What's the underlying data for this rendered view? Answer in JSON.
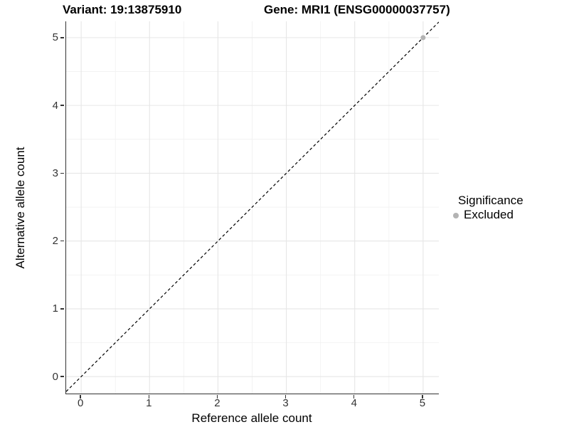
{
  "header": {
    "variant_title": "Variant: 19:13875910",
    "gene_title": "Gene: MRI1 (ENSG00000037757)"
  },
  "axes": {
    "x": {
      "label": "Reference allele count",
      "tick_labels": [
        "0",
        "1",
        "2",
        "3",
        "4",
        "5"
      ]
    },
    "y": {
      "label": "Alternative allele count",
      "tick_labels": [
        "0",
        "1",
        "2",
        "3",
        "4",
        "5"
      ]
    }
  },
  "legend": {
    "title": "Significance",
    "items": [
      {
        "label": "Excluded",
        "color": "#b3b3b3",
        "marker": "circle"
      }
    ]
  },
  "chart_data": {
    "type": "scatter",
    "title": "Variant: 19:13875910   Gene: MRI1 (ENSG00000037757)",
    "xlabel": "Reference allele count",
    "ylabel": "Alternative allele count",
    "xlim": [
      -0.22,
      5.23
    ],
    "ylim": [
      -0.25,
      5.24
    ],
    "xticks": [
      0,
      1,
      2,
      3,
      4,
      5
    ],
    "yticks": [
      0,
      1,
      2,
      3,
      4,
      5
    ],
    "grid": "major+minor",
    "legend_position": "right",
    "series": [
      {
        "name": "Excluded",
        "significance": "Excluded",
        "color": "#b3b3b3",
        "points": [
          {
            "x": 5,
            "y": 5
          }
        ]
      }
    ],
    "reference_line": {
      "kind": "abline",
      "slope": 1,
      "intercept": 0,
      "style": "dashed",
      "color": "#000000"
    }
  },
  "colors": {
    "background": "#ffffff",
    "grid_major": "#e6e6e6",
    "grid_minor": "#f2f2f2",
    "axis_line": "#333333",
    "tick_label": "#333333",
    "title_text": "#000000",
    "excluded_point": "#b3b3b3"
  }
}
